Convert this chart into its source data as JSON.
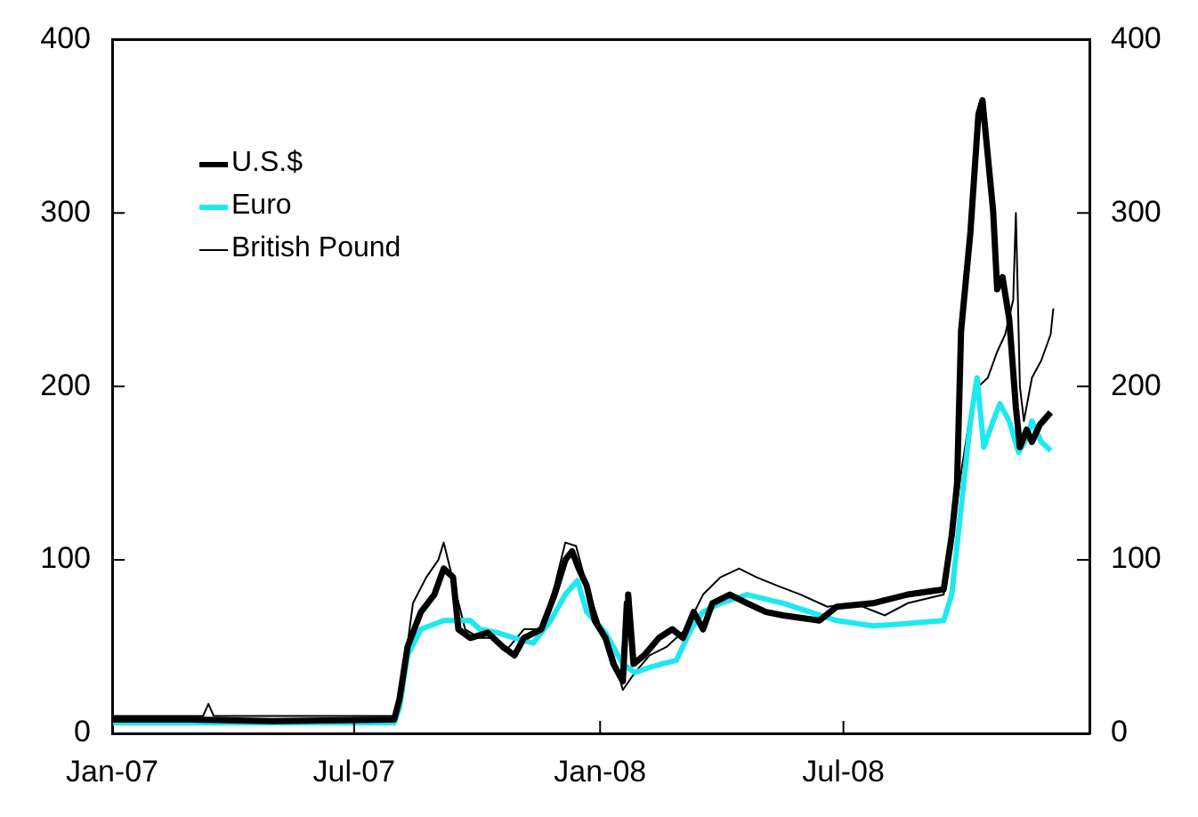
{
  "chart_data": {
    "type": "line",
    "xlim": [
      "2007-01-01",
      "2009-01-01"
    ],
    "xticks": [
      {
        "value": "2007-01-01",
        "label": "Jan-07"
      },
      {
        "value": "2007-07-01",
        "label": "Jul-07"
      },
      {
        "value": "2008-01-01",
        "label": "Jan-08"
      },
      {
        "value": "2008-07-01",
        "label": "Jul-08"
      }
    ],
    "ylim": [
      0,
      400
    ],
    "yticks": [
      0,
      100,
      200,
      300,
      400
    ],
    "y2lim": [
      0,
      400
    ],
    "y2ticks": [
      0,
      100,
      200,
      300,
      400
    ],
    "grid": false,
    "legend": "top left",
    "marker": "none",
    "line_style": "solid",
    "series": [
      {
        "name": "U.S.$",
        "color": "#000000",
        "x": [
          "2007-01-01",
          "2007-03-01",
          "2007-05-01",
          "2007-07-31",
          "2007-08-04",
          "2007-08-10",
          "2007-08-20",
          "2007-08-30",
          "2007-09-06",
          "2007-09-13",
          "2007-09-17",
          "2007-09-26",
          "2007-10-09",
          "2007-10-20",
          "2007-10-29",
          "2007-11-05",
          "2007-11-18",
          "2007-11-28",
          "2007-12-06",
          "2007-12-11",
          "2007-12-16",
          "2007-12-22",
          "2007-12-28",
          "2008-01-05",
          "2008-01-11",
          "2008-01-18",
          "2008-01-21",
          "2008-01-22",
          "2008-01-26",
          "2008-02-03",
          "2008-02-14",
          "2008-02-24",
          "2008-03-03",
          "2008-03-11",
          "2008-03-18",
          "2008-03-25",
          "2008-04-07",
          "2008-04-20",
          "2008-05-04",
          "2008-05-17",
          "2008-06-13",
          "2008-06-26",
          "2008-07-23",
          "2008-08-18",
          "2008-09-14",
          "2008-09-20",
          "2008-09-24",
          "2008-09-27",
          "2008-10-04",
          "2008-10-10",
          "2008-10-13",
          "2008-10-21",
          "2008-10-24",
          "2008-10-28",
          "2008-11-02",
          "2008-11-07",
          "2008-11-10",
          "2008-11-15",
          "2008-11-19",
          "2008-11-25",
          "2008-12-03"
        ],
        "values": [
          8,
          8,
          7,
          8,
          20,
          50,
          70,
          80,
          95,
          90,
          60,
          55,
          58,
          50,
          45,
          55,
          60,
          80,
          100,
          105,
          95,
          85,
          65,
          55,
          40,
          30,
          75,
          80,
          40,
          45,
          55,
          60,
          55,
          70,
          60,
          75,
          80,
          75,
          70,
          68,
          65,
          73,
          75,
          80,
          83,
          114,
          144,
          232,
          289,
          357,
          365,
          301,
          256,
          263,
          239,
          188,
          165,
          175,
          168,
          178,
          185
        ]
      },
      {
        "name": "Euro",
        "color": "#1ee8f0",
        "x": [
          "2007-01-01",
          "2007-04-01",
          "2007-07-31",
          "2007-08-04",
          "2007-08-10",
          "2007-08-20",
          "2007-09-06",
          "2007-09-26",
          "2007-10-03",
          "2007-10-16",
          "2007-10-29",
          "2007-11-12",
          "2007-11-25",
          "2007-12-06",
          "2007-12-15",
          "2007-12-22",
          "2008-01-05",
          "2008-01-18",
          "2008-01-27",
          "2008-02-07",
          "2008-02-16",
          "2008-02-27",
          "2008-03-09",
          "2008-03-18",
          "2008-03-31",
          "2008-04-20",
          "2008-05-17",
          "2008-06-06",
          "2008-06-26",
          "2008-07-23",
          "2008-08-12",
          "2008-09-14",
          "2008-09-20",
          "2008-09-27",
          "2008-10-04",
          "2008-10-09",
          "2008-10-14",
          "2008-10-21",
          "2008-10-26",
          "2008-11-02",
          "2008-11-09",
          "2008-11-15",
          "2008-11-19",
          "2008-11-26",
          "2008-12-03"
        ],
        "values": [
          6,
          6,
          6,
          15,
          45,
          60,
          65,
          65,
          60,
          58,
          55,
          52,
          65,
          80,
          88,
          70,
          58,
          40,
          35,
          38,
          40,
          42,
          60,
          70,
          75,
          80,
          75,
          70,
          65,
          62,
          63,
          65,
          80,
          130,
          180,
          205,
          165,
          180,
          190,
          180,
          162,
          170,
          180,
          168,
          163
        ]
      },
      {
        "name": "British Pound",
        "color": "#000000",
        "x": [
          "2007-01-01",
          "2007-02-15",
          "2007-03-10",
          "2007-03-14",
          "2007-03-18",
          "2007-05-01",
          "2007-07-31",
          "2007-08-08",
          "2007-08-14",
          "2007-08-24",
          "2007-09-02",
          "2007-09-06",
          "2007-09-14",
          "2007-09-22",
          "2007-10-03",
          "2007-10-12",
          "2007-10-23",
          "2007-11-05",
          "2007-11-18",
          "2007-11-28",
          "2007-12-06",
          "2007-12-14",
          "2007-12-22",
          "2008-01-02",
          "2008-01-11",
          "2008-01-18",
          "2008-01-27",
          "2008-02-07",
          "2008-02-20",
          "2008-03-05",
          "2008-03-18",
          "2008-03-31",
          "2008-04-14",
          "2008-04-27",
          "2008-05-13",
          "2008-05-30",
          "2008-06-19",
          "2008-07-09",
          "2008-08-01",
          "2008-08-18",
          "2008-09-14",
          "2008-09-20",
          "2008-09-27",
          "2008-10-04",
          "2008-10-10",
          "2008-10-17",
          "2008-10-24",
          "2008-10-30",
          "2008-11-05",
          "2008-11-07",
          "2008-11-10",
          "2008-11-13",
          "2008-11-19",
          "2008-11-26",
          "2008-12-03",
          "2008-12-05"
        ],
        "values": [
          10,
          10,
          10,
          17,
          10,
          10,
          10,
          40,
          75,
          90,
          100,
          110,
          85,
          60,
          55,
          55,
          48,
          60,
          60,
          85,
          110,
          108,
          85,
          60,
          45,
          25,
          35,
          45,
          50,
          60,
          80,
          90,
          95,
          90,
          85,
          80,
          73,
          75,
          68,
          75,
          80,
          110,
          150,
          185,
          200,
          205,
          220,
          230,
          250,
          300,
          200,
          180,
          205,
          215,
          230,
          245
        ]
      }
    ]
  }
}
